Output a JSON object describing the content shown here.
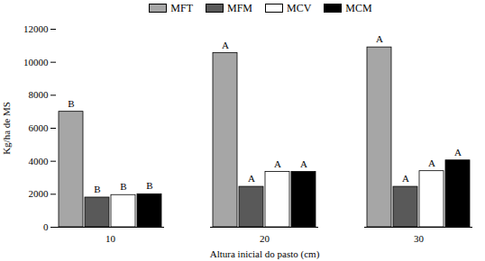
{
  "chart_data": {
    "type": "bar",
    "x_label": "Altura inicial do pasto (cm)",
    "y_label": "Kg/ha de MS",
    "categories": [
      "10",
      "20",
      "30"
    ],
    "series": [
      {
        "name": "MFT",
        "color": "#a6a6a6",
        "values": [
          7000,
          10550,
          10900
        ],
        "annotations": [
          "B",
          "A",
          "A"
        ]
      },
      {
        "name": "MFM",
        "color": "#595959",
        "values": [
          1800,
          2450,
          2450
        ],
        "annotations": [
          "B",
          "A",
          "A"
        ]
      },
      {
        "name": "MCV",
        "color": "#ffffff",
        "values": [
          1950,
          3350,
          3400
        ],
        "annotations": [
          "B",
          "A",
          "A"
        ]
      },
      {
        "name": "MCM",
        "color": "#000000",
        "values": [
          2000,
          3350,
          4050
        ],
        "annotations": [
          "B",
          "A",
          "A"
        ]
      }
    ],
    "ylim": [
      0,
      12000
    ],
    "yticks": [
      0,
      2000,
      4000,
      6000,
      8000,
      10000,
      12000
    ],
    "grid": false,
    "legend": "top"
  }
}
